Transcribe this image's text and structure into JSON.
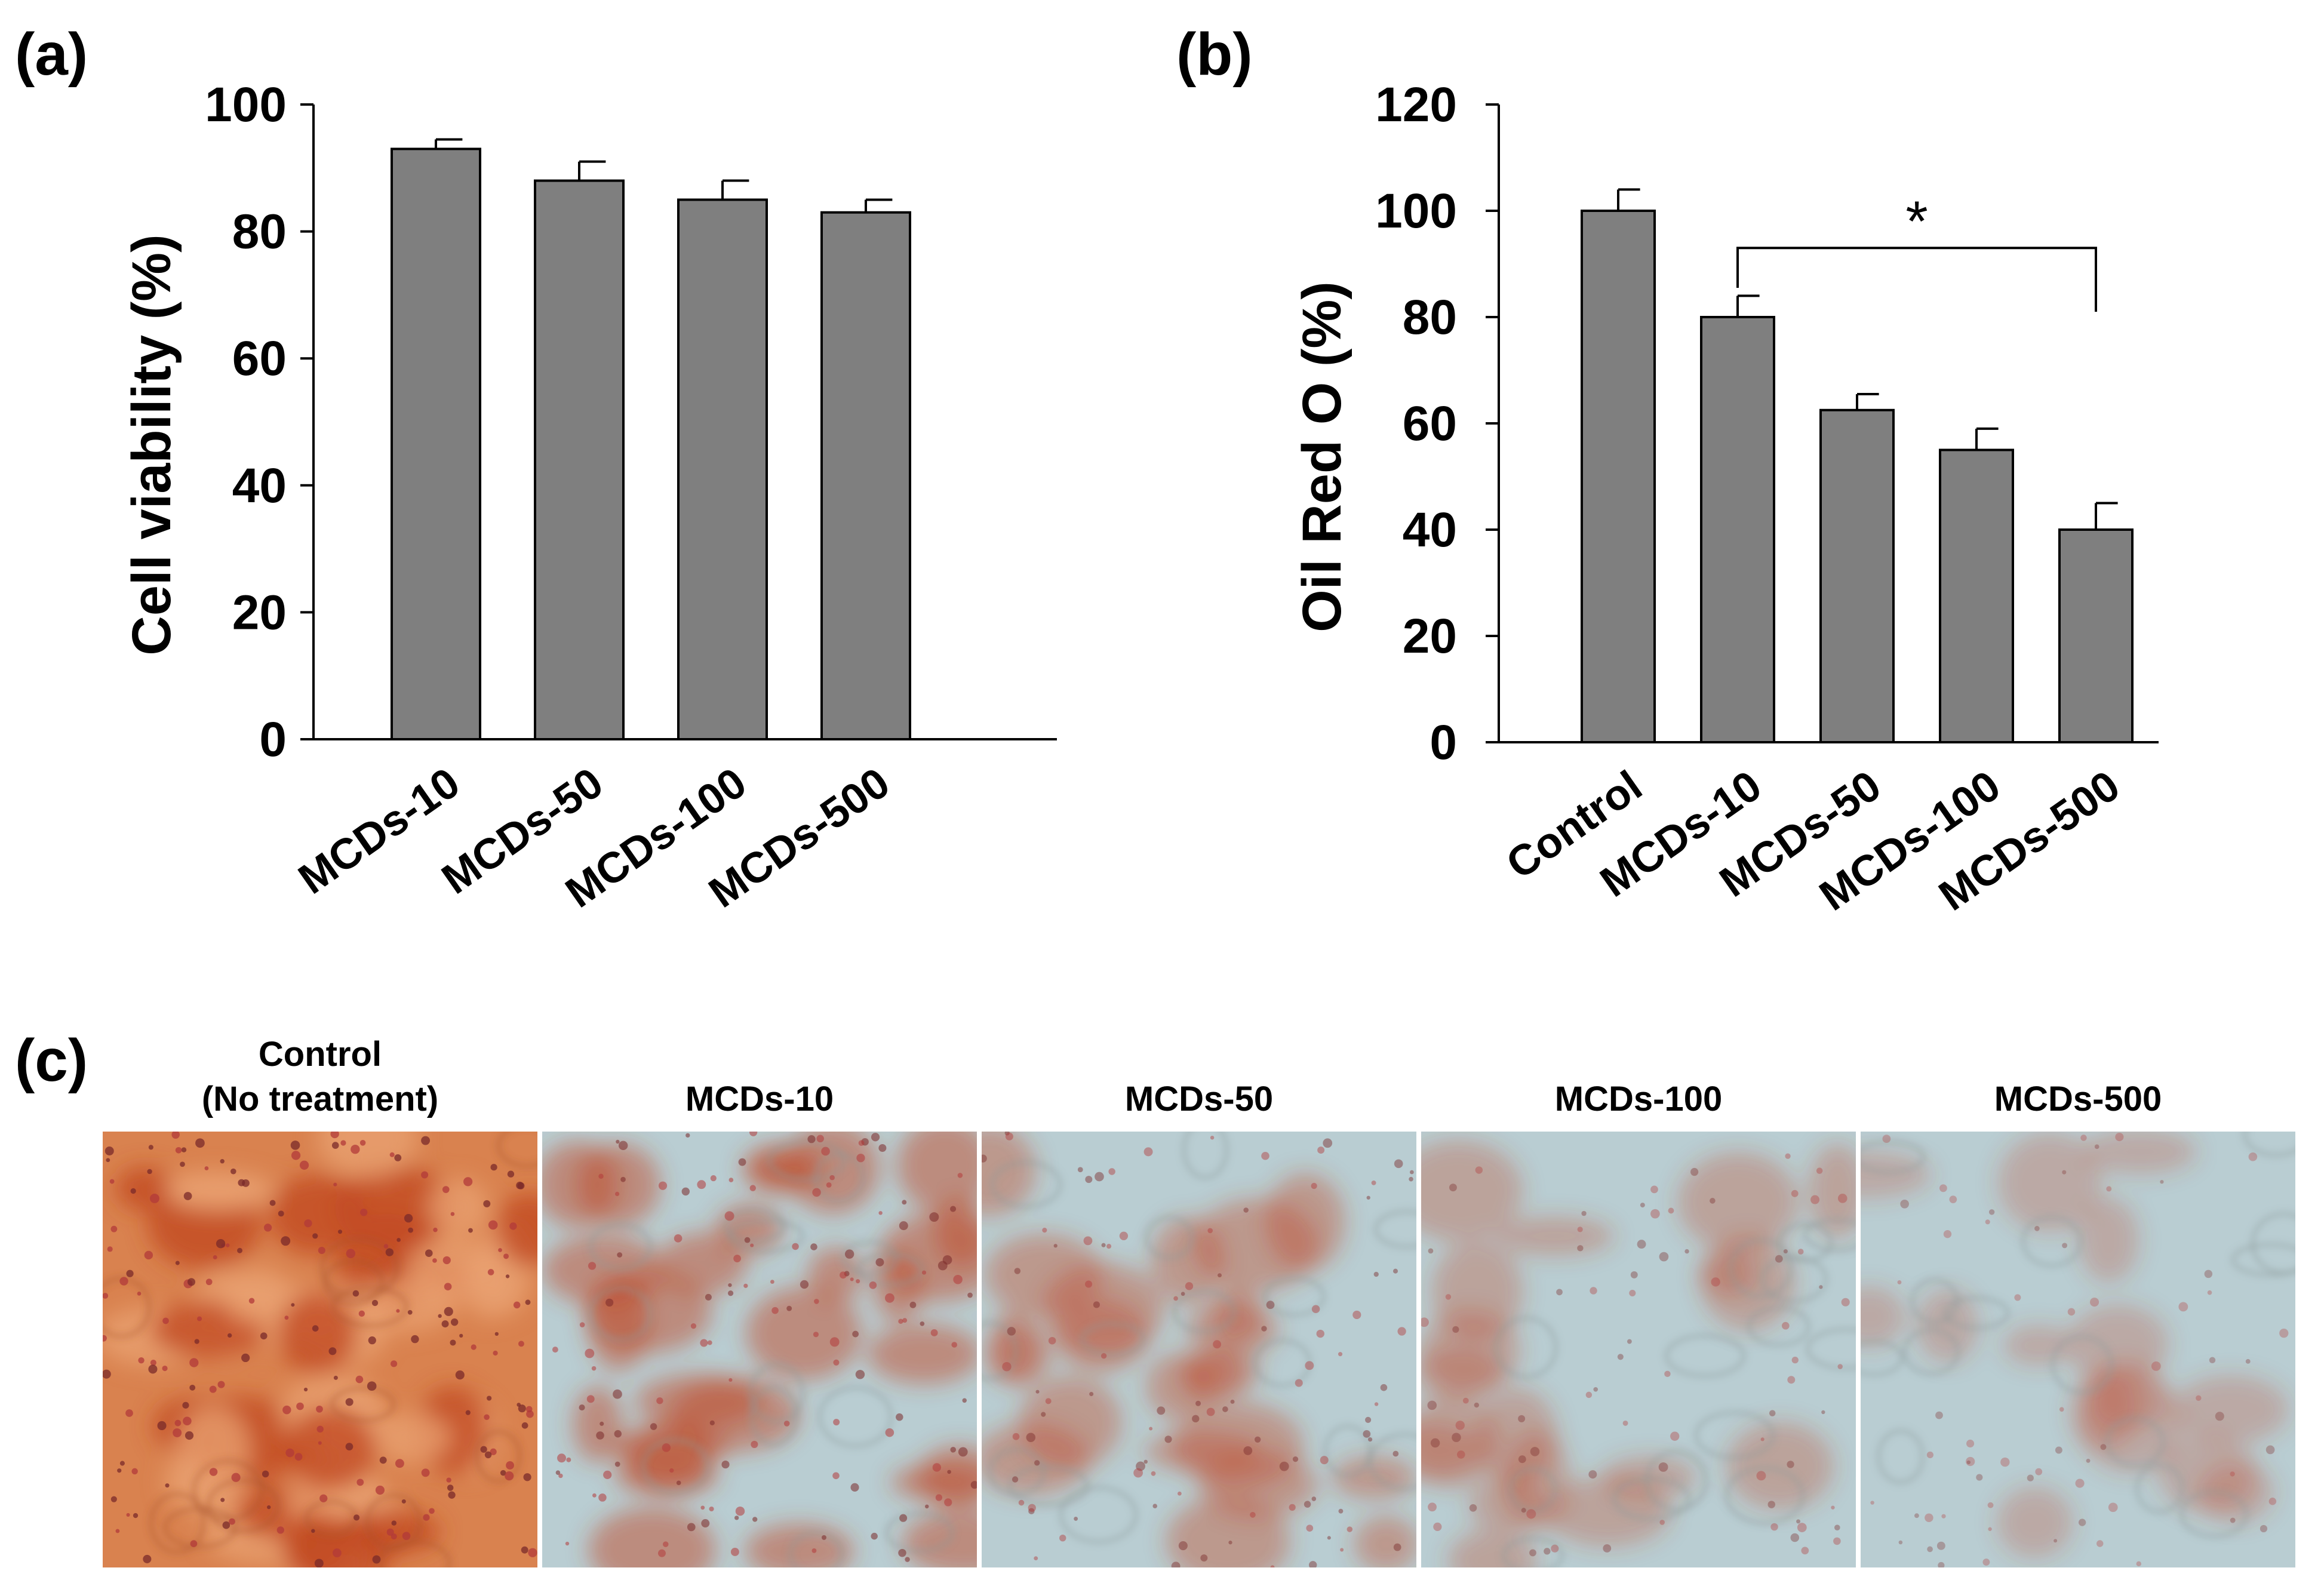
{
  "panel_labels": {
    "a": "(a)",
    "b": "(b)",
    "c": "(c)"
  },
  "colors": {
    "bar_fill": "#7f7f7f",
    "bar_stroke": "#000000",
    "axis": "#000000"
  },
  "chart_data": [
    {
      "id": "a",
      "type": "bar",
      "ylabel": "Cell viability (%)",
      "xlabel": "",
      "ylim": [
        0,
        100
      ],
      "yticks": [
        0,
        20,
        40,
        60,
        80,
        100
      ],
      "categories": [
        "MCDs-10",
        "MCDs-50",
        "MCDs-100",
        "MCDs-500"
      ],
      "values": [
        93,
        88,
        85,
        83
      ],
      "errors": [
        1.5,
        3,
        3,
        2
      ],
      "grid": false
    },
    {
      "id": "b",
      "type": "bar",
      "ylabel": "Oil Red O (%)",
      "xlabel": "",
      "ylim": [
        0,
        120
      ],
      "yticks": [
        0,
        20,
        40,
        60,
        80,
        100,
        120
      ],
      "categories": [
        "Control",
        "MCDs-10",
        "MCDs-50",
        "MCDs-100",
        "MCDs-500"
      ],
      "values": [
        100,
        80,
        62.5,
        55,
        40
      ],
      "errors": [
        4,
        4,
        3,
        4,
        5
      ],
      "grid": false,
      "annotation": {
        "text": "*",
        "from": "MCDs-10",
        "to": "MCDs-500"
      }
    }
  ],
  "images": {
    "captions": [
      {
        "line1": "Control",
        "line2": "(No treatment)"
      },
      {
        "line1": "MCDs-10",
        "line2": ""
      },
      {
        "line1": "MCDs-50",
        "line2": ""
      },
      {
        "line1": "MCDs-100",
        "line2": ""
      },
      {
        "line1": "MCDs-500",
        "line2": ""
      }
    ],
    "stain_level": [
      1.0,
      0.6,
      0.4,
      0.25,
      0.15
    ],
    "stain_color": "#c04a2a",
    "background_color": "#b9cdd2"
  }
}
